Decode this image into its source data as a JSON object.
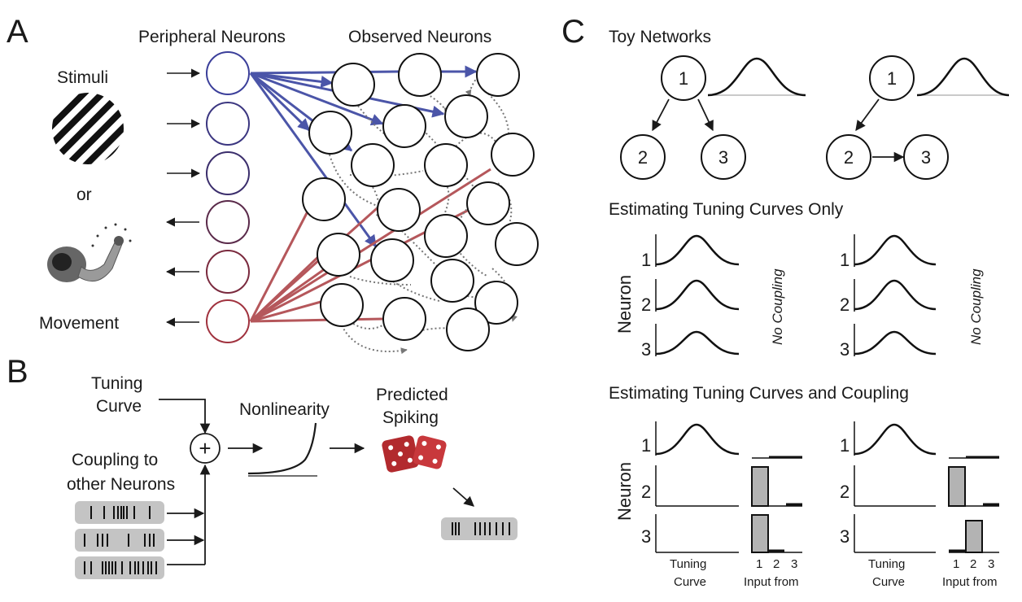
{
  "panels": {
    "A": {
      "letter": "A",
      "peripheral_title": "Peripheral Neurons",
      "observed_title": "Observed Neurons",
      "stimuli_label": "Stimuli",
      "or_label": "or",
      "movement_label": "Movement"
    },
    "B": {
      "letter": "B",
      "tuning_curve_line1": "Tuning",
      "tuning_curve_line2": "Curve",
      "coupling_line1": "Coupling to",
      "coupling_line2": "other Neurons",
      "sum_symbol": "+",
      "nonlinearity": "Nonlinearity",
      "predicted_line1": "Predicted",
      "predicted_line2": "Spiking"
    },
    "C": {
      "letter": "C",
      "toy_networks": "Toy Networks",
      "estimating_tuning_only": "Estimating Tuning Curves Only",
      "estimating_tuning_coupling": "Estimating Tuning Curves and Coupling",
      "neuron_axis": "Neuron",
      "no_coupling": "No Coupling",
      "tuning_curve_line1": "Tuning",
      "tuning_curve_line2": "Curve",
      "input_from": "Input from",
      "node_labels": [
        "1",
        "2",
        "3"
      ],
      "row_labels": [
        "1",
        "2",
        "3"
      ],
      "input_ticks": [
        "1",
        "2",
        "3"
      ]
    }
  },
  "colors": {
    "blue_connection": "#4b55a8",
    "red_connection": "#b5575b",
    "coupling_dotted": "#777777",
    "bar_fill": "#b3b3b3",
    "spike_box": "#c4c4c4",
    "die_red": "#b22a2e"
  }
}
